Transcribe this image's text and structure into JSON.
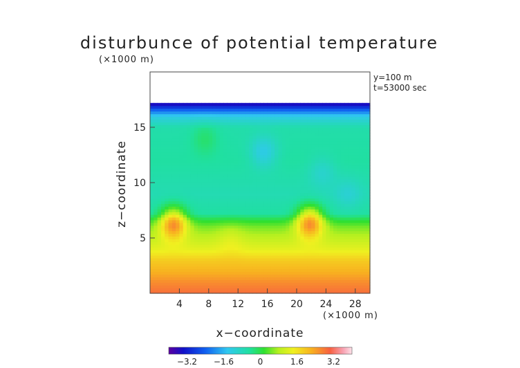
{
  "chart_data": {
    "type": "heatmap",
    "title": "disturbunce of potential temperature",
    "title_unit": "(×1000 m)",
    "annotations": [
      "y=100 m",
      "t=53000 sec"
    ],
    "xlabel": "x−coordinate",
    "x_unit": "(×1000 m)",
    "ylabel": "z−coordinate",
    "xlim": [
      0,
      30
    ],
    "ylim": [
      0,
      20
    ],
    "x_ticks": [
      4,
      8,
      12,
      16,
      20,
      24,
      28
    ],
    "y_ticks": [
      5,
      10,
      15
    ],
    "data_top_z": 17.2,
    "colorbar": {
      "range": [
        -4,
        4
      ],
      "tick_values": [
        -3.2,
        -1.6,
        0,
        1.6,
        3.2
      ],
      "tick_labels": [
        "−3.2",
        "−1.6",
        "0",
        "1.6",
        "3.2"
      ]
    },
    "z_profile": [
      {
        "z": 0.0,
        "value": 2.9
      },
      {
        "z": 1.0,
        "value": 2.6
      },
      {
        "z": 2.0,
        "value": 2.2
      },
      {
        "z": 3.0,
        "value": 1.9
      },
      {
        "z": 4.0,
        "value": 1.3
      },
      {
        "z": 5.0,
        "value": 0.9
      },
      {
        "z": 6.0,
        "value": 0.5
      },
      {
        "z": 6.6,
        "value": 0.1
      },
      {
        "z": 7.2,
        "value": -0.5
      },
      {
        "z": 9.0,
        "value": -0.7
      },
      {
        "z": 12.0,
        "value": -0.5
      },
      {
        "z": 15.0,
        "value": -0.6
      },
      {
        "z": 16.0,
        "value": -1.3
      },
      {
        "z": 16.6,
        "value": -2.4
      },
      {
        "z": 17.2,
        "value": -3.7
      }
    ],
    "features": [
      {
        "x": 3.2,
        "z": 6.4,
        "value": 2.5
      },
      {
        "x": 21.8,
        "z": 6.5,
        "value": 2.5
      },
      {
        "x": 15.5,
        "z": 12.8,
        "value": -1.3
      },
      {
        "x": 23.5,
        "z": 11.0,
        "value": -1.0
      },
      {
        "x": 7.5,
        "z": 14.0,
        "value": -0.2
      },
      {
        "x": 11.0,
        "z": 5.0,
        "value": 1.2
      },
      {
        "x": 27.0,
        "z": 9.0,
        "value": -1.1
      }
    ]
  }
}
